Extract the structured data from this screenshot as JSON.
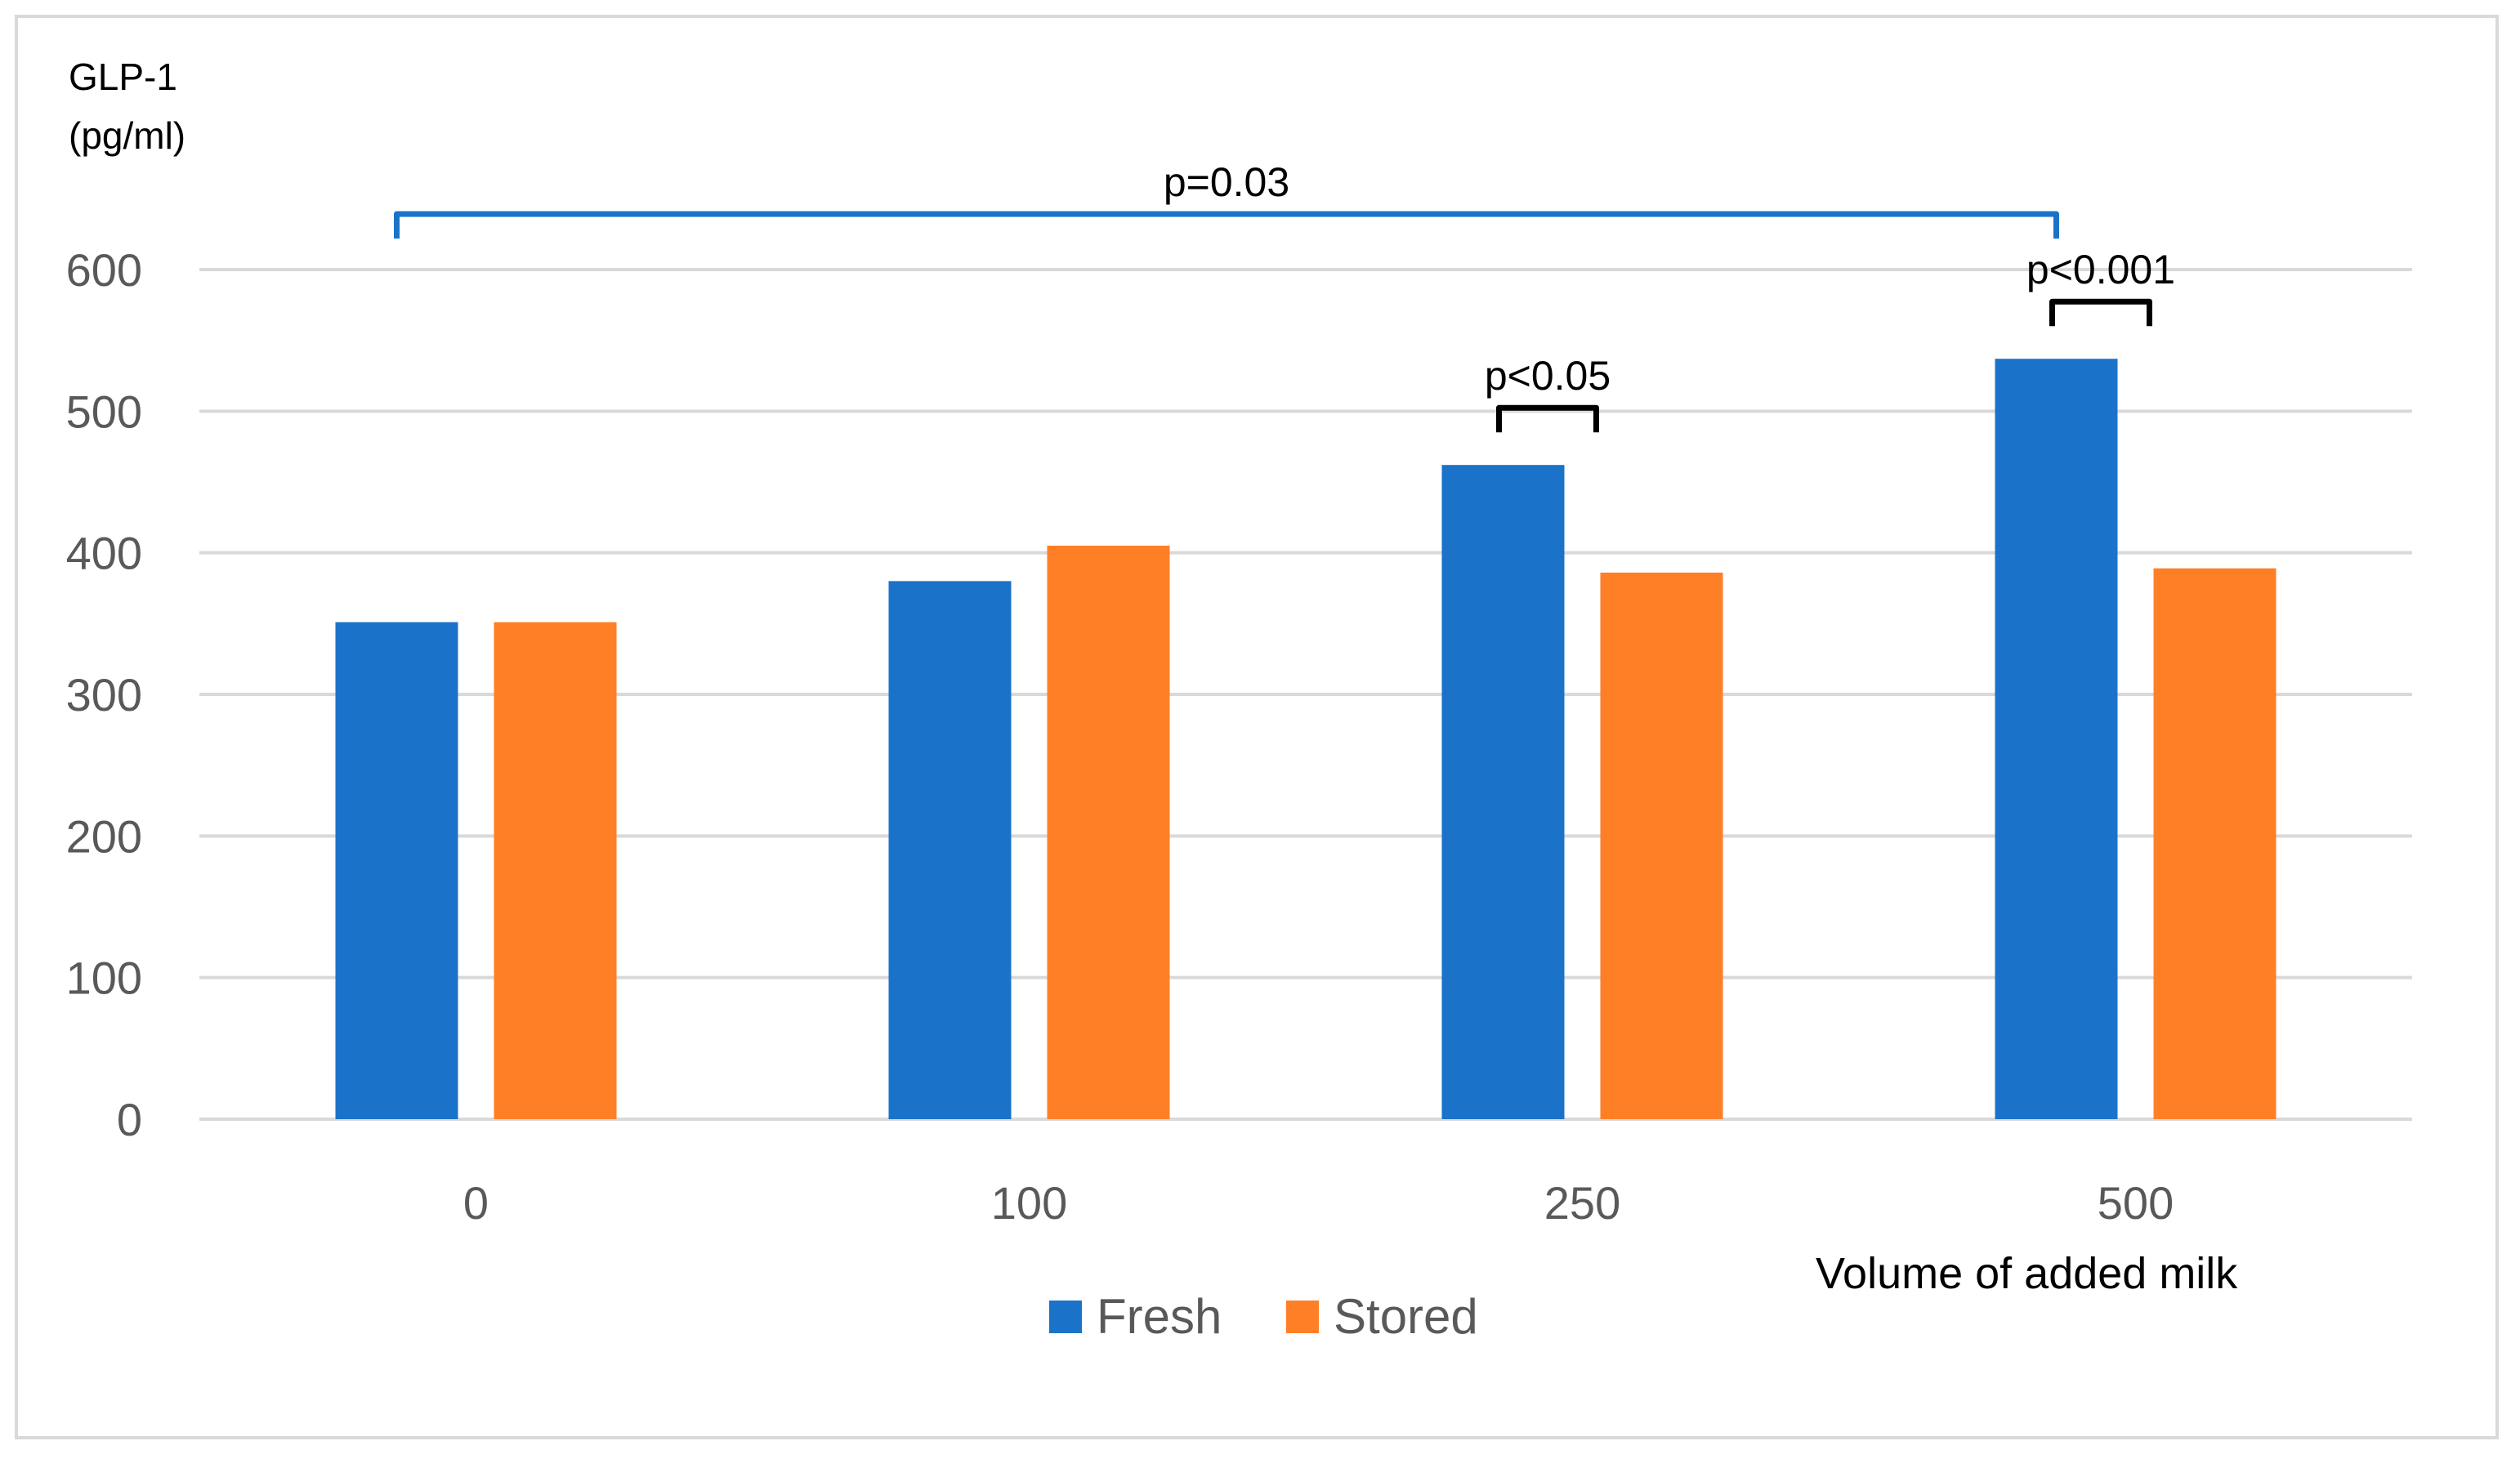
{
  "chart_data": {
    "type": "bar",
    "ylabel_lines": [
      "GLP-1",
      "(pg/ml)"
    ],
    "xlabel": "Volume of added milk",
    "categories": [
      "0",
      "100",
      "250",
      "500"
    ],
    "series": [
      {
        "name": "Fresh",
        "color": "#1a73c8",
        "values": [
          351,
          380,
          462,
          537
        ]
      },
      {
        "name": "Stored",
        "color": "#ff7f27",
        "values": [
          351,
          405,
          386,
          389
        ]
      }
    ],
    "ylim": [
      0,
      600
    ],
    "yticks": [
      0,
      100,
      200,
      300,
      400,
      500,
      600
    ],
    "grid": true,
    "legend_position": "bottom",
    "annotations": [
      {
        "text": "p=0.03",
        "type": "bracket",
        "from": "0",
        "to": "500",
        "color": "#1a73c8"
      },
      {
        "text": "p<0.05",
        "type": "bracket",
        "category": "250",
        "color": "#000000"
      },
      {
        "text": "p<0.001",
        "type": "bracket",
        "category": "500",
        "color": "#000000"
      }
    ]
  }
}
